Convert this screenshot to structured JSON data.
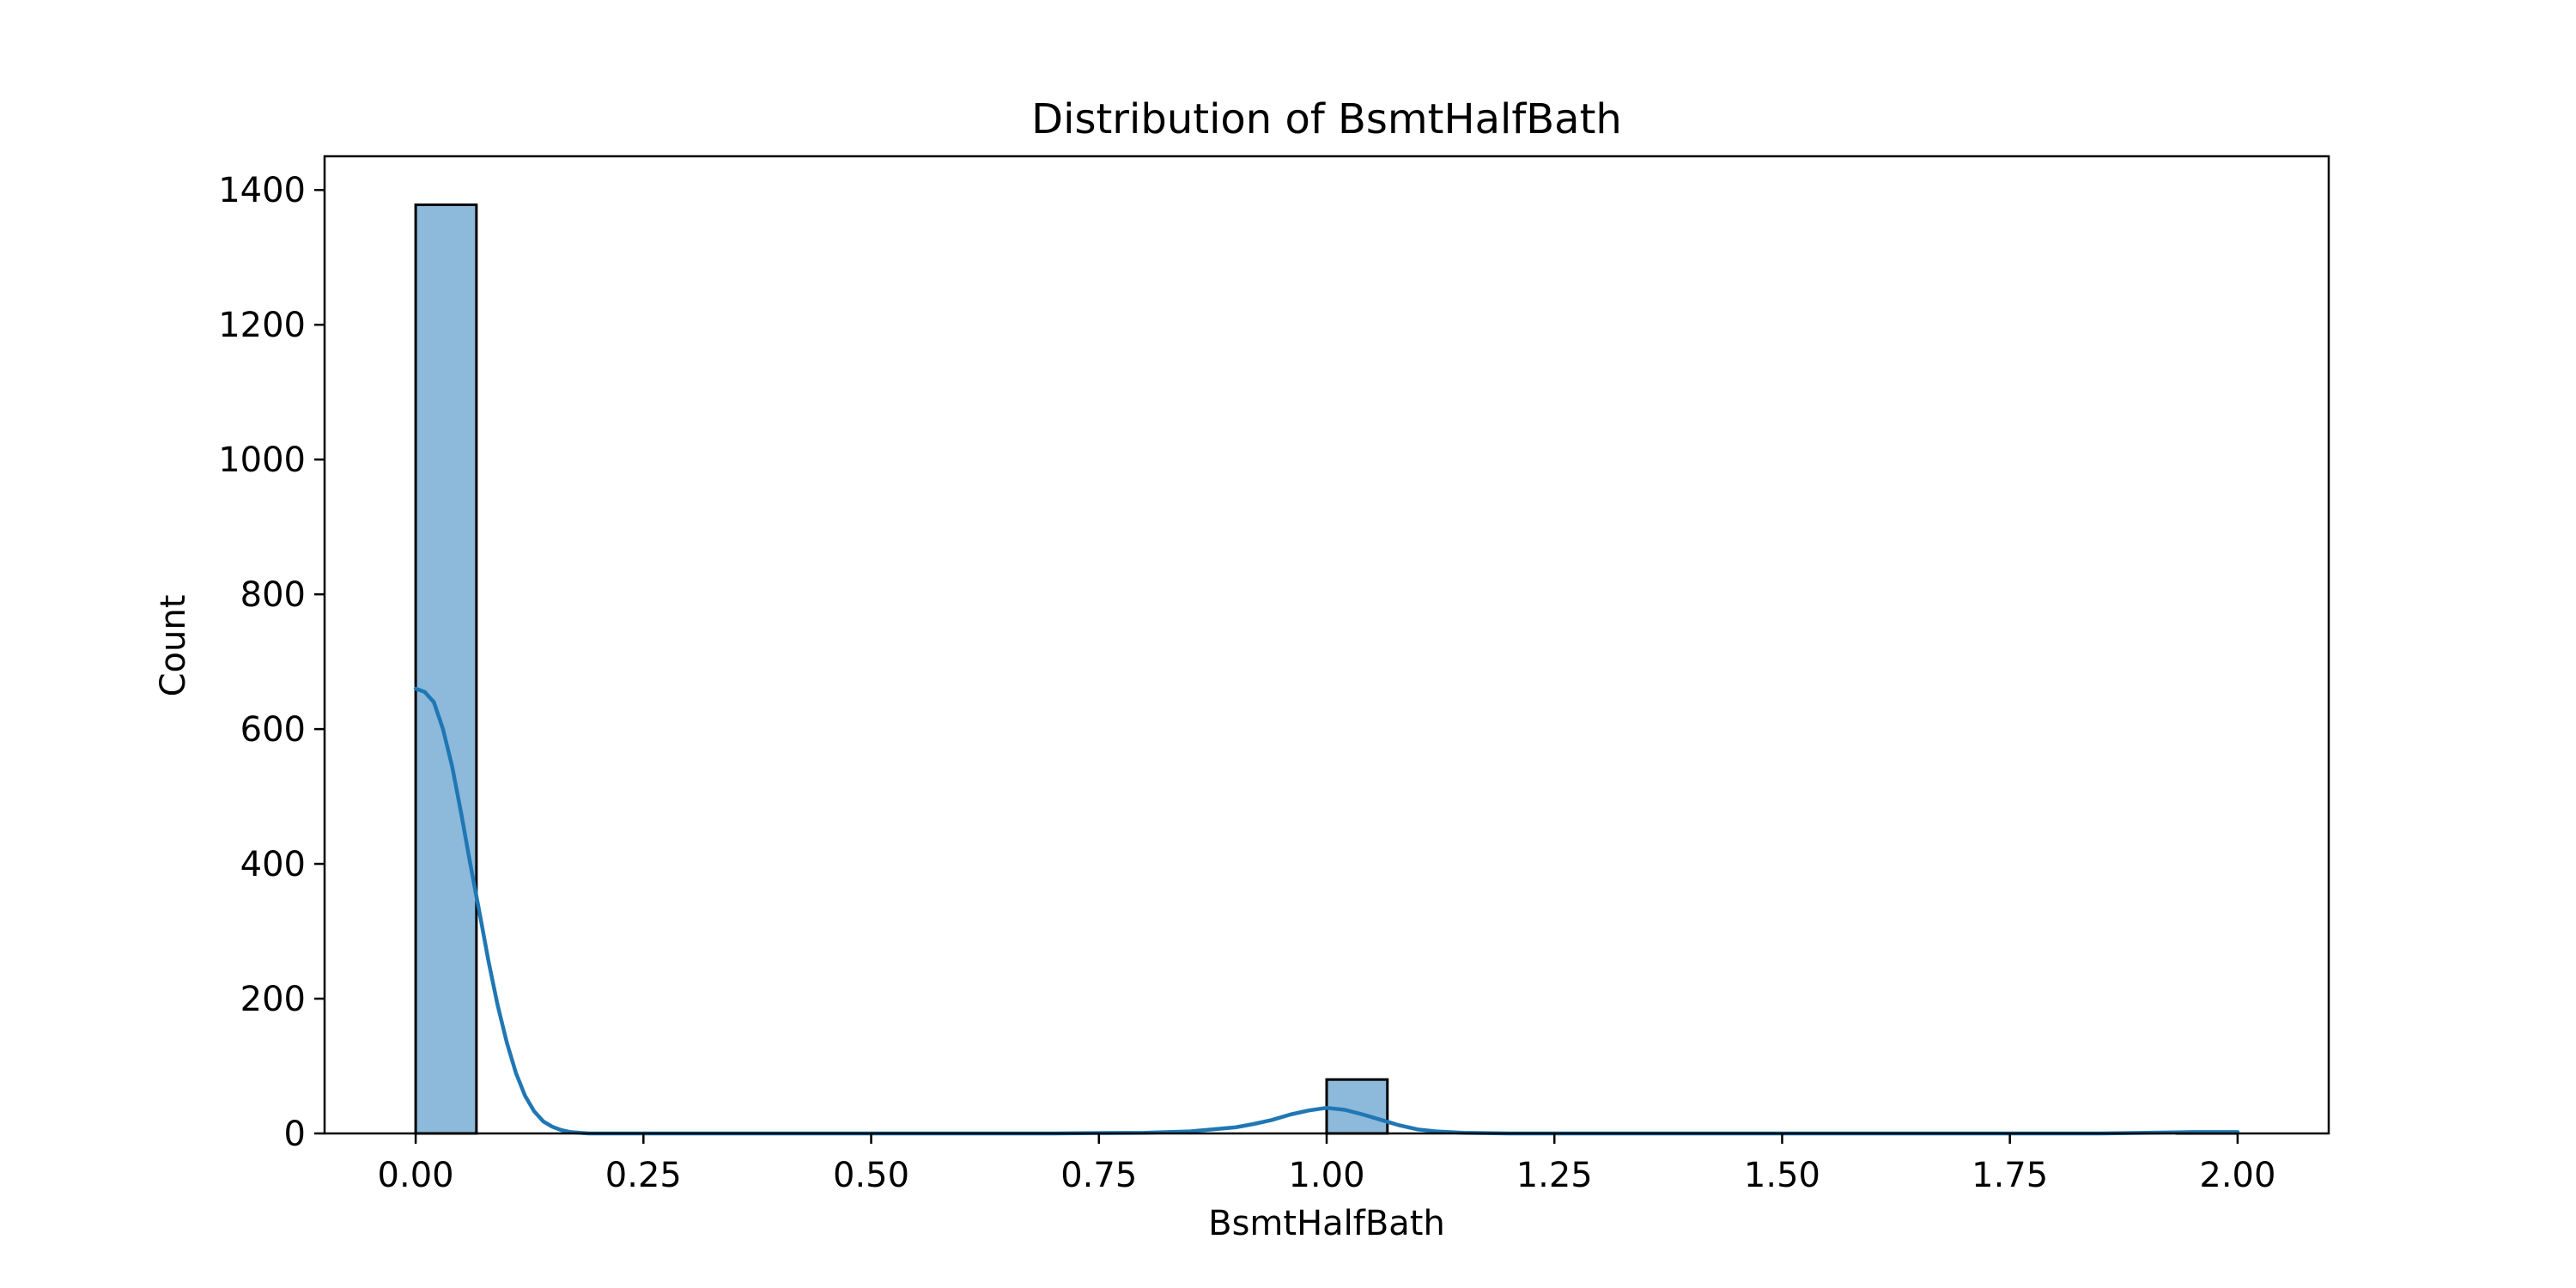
{
  "chart_data": {
    "type": "bar",
    "title": "Distribution of BsmtHalfBath",
    "xlabel": "BsmtHalfBath",
    "ylabel": "Count",
    "xlim": [
      -0.1,
      2.1
    ],
    "ylim": [
      0,
      1450
    ],
    "x_ticks": [
      0.0,
      0.25,
      0.5,
      0.75,
      1.0,
      1.25,
      1.5,
      1.75,
      2.0
    ],
    "x_tick_labels": [
      "0.00",
      "0.25",
      "0.50",
      "0.75",
      "1.00",
      "1.25",
      "1.50",
      "1.75",
      "2.00"
    ],
    "y_ticks": [
      0,
      200,
      400,
      600,
      800,
      1000,
      1200,
      1400
    ],
    "y_tick_labels": [
      "0",
      "200",
      "400",
      "600",
      "800",
      "1000",
      "1200",
      "1400"
    ],
    "bars": [
      {
        "x_start": 0.0,
        "x_end": 0.0667,
        "count": 1378
      },
      {
        "x_start": 1.0,
        "x_end": 1.0667,
        "count": 80
      },
      {
        "x_start": 1.9333,
        "x_end": 2.0,
        "count": 2
      }
    ],
    "kde": {
      "x": [
        0.0,
        0.01,
        0.02,
        0.03,
        0.04,
        0.05,
        0.06,
        0.07,
        0.08,
        0.09,
        0.1,
        0.11,
        0.12,
        0.13,
        0.14,
        0.15,
        0.16,
        0.17,
        0.18,
        0.19,
        0.2,
        0.25,
        0.3,
        0.5,
        0.7,
        0.8,
        0.85,
        0.9,
        0.92,
        0.94,
        0.96,
        0.98,
        1.0,
        1.02,
        1.04,
        1.06,
        1.08,
        1.1,
        1.12,
        1.15,
        1.2,
        1.3,
        1.5,
        1.7,
        1.85,
        1.9,
        1.95,
        2.0
      ],
      "y": [
        660,
        655,
        640,
        600,
        545,
        475,
        400,
        328,
        255,
        190,
        135,
        90,
        56,
        33,
        18,
        10,
        5,
        2,
        1,
        0,
        0,
        0,
        0,
        0,
        0,
        1,
        3,
        9,
        14,
        20,
        28,
        34,
        38,
        35,
        28,
        20,
        12,
        6,
        3,
        1,
        0,
        0,
        0,
        0,
        0,
        1,
        2,
        2
      ]
    },
    "colors": {
      "bar_fill": "#8db9db",
      "bar_edge": "#000000",
      "kde_line": "#1f77b4"
    },
    "grid": false,
    "legend": "none"
  }
}
